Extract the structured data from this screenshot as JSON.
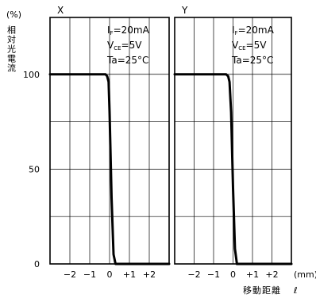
{
  "chart_data": {
    "type": "line",
    "ylabel": "相対光電流",
    "yunit": "(%)",
    "ylim": [
      0,
      130
    ],
    "yticks": [
      0,
      50,
      100
    ],
    "xlabel": "移動距離",
    "xlabel_symbol": "ℓ",
    "xunit": "(mm)",
    "grid": true,
    "panels": [
      {
        "label": "X",
        "xlim": [
          -3,
          3
        ],
        "xticks": [
          -2,
          -1,
          0,
          1,
          2
        ],
        "xtick_labels": [
          "−2",
          "−1",
          "0",
          "+1",
          "+2"
        ],
        "conditions": [
          {
            "main": "I",
            "sub": "F",
            "rest": "=20mA"
          },
          {
            "main": "V",
            "sub": "CE",
            "rest": "=5V"
          },
          {
            "main": "Ta=25°C",
            "sub": "",
            "rest": ""
          }
        ],
        "series": [
          {
            "x": [
              -3.0,
              -0.2,
              -0.12,
              -0.05,
              0.0,
              0.1,
              0.2,
              0.3,
              3.0
            ],
            "y": [
              100,
              100,
              99,
              96,
              80,
              35,
              5,
              0,
              0
            ]
          }
        ]
      },
      {
        "label": "Y",
        "xlim": [
          -3,
          3
        ],
        "xticks": [
          -2,
          -1,
          0,
          1,
          2
        ],
        "xtick_labels": [
          "−2",
          "−1",
          "0",
          "+1",
          "+2"
        ],
        "conditions": [
          {
            "main": "I",
            "sub": "F",
            "rest": "=20mA"
          },
          {
            "main": "V",
            "sub": "CE",
            "rest": "=5V"
          },
          {
            "main": "Ta=25°C",
            "sub": "",
            "rest": ""
          }
        ],
        "series": [
          {
            "x": [
              -3.0,
              -0.35,
              -0.25,
              -0.18,
              -0.1,
              0.0,
              0.1,
              0.2,
              3.0
            ],
            "y": [
              100,
              100,
              99,
              96,
              80,
              40,
              8,
              0,
              0
            ]
          }
        ]
      }
    ]
  }
}
